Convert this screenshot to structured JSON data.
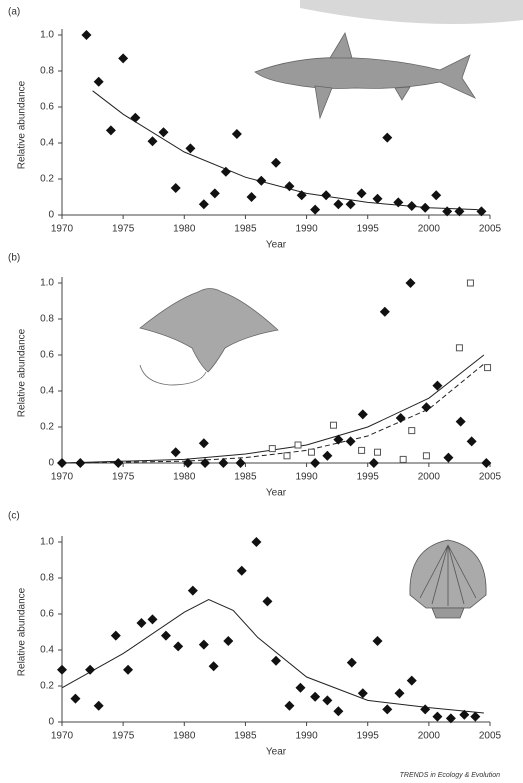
{
  "chart_data": [
    {
      "type": "scatter",
      "title": "(a)",
      "ylabel": "Relative abundance",
      "xlabel": "Year",
      "xlim": [
        1970,
        2005
      ],
      "xticks": [
        1970,
        1975,
        1980,
        1985,
        1990,
        1995,
        2000,
        2005
      ],
      "ylim": [
        0,
        1
      ],
      "yticks": [
        0,
        0.2,
        0.4,
        0.6,
        0.8,
        {
          "value": 1,
          "label": "1.0"
        }
      ],
      "series": [
        {
          "marker": "diamond",
          "color": "#111111",
          "x": [
            1972,
            1973,
            1975,
            1974,
            1976,
            1977.4,
            1978.3,
            1979.3,
            1980.5,
            1981.6,
            1982.5,
            1983.4,
            1984.3,
            1985.5,
            1986.3,
            1987.5,
            1988.6,
            1989.6,
            1990.7,
            1991.6,
            1992.6,
            1993.6,
            1994.5,
            1995.8,
            1996.6,
            1997.5,
            1998.6,
            1999.7,
            2000.6,
            2001.5,
            2002.5,
            2004.3
          ],
          "values": [
            1.0,
            0.74,
            0.87,
            0.47,
            0.54,
            0.41,
            0.46,
            0.15,
            0.37,
            0.06,
            0.12,
            0.24,
            0.45,
            0.1,
            0.19,
            0.29,
            0.16,
            0.11,
            0.03,
            0.11,
            0.06,
            0.06,
            0.12,
            0.09,
            0.43,
            0.07,
            0.05,
            0.04,
            0.11,
            0.02,
            0.02,
            0.02
          ]
        }
      ],
      "fits": [
        {
          "style": "solid",
          "color": "#222222",
          "x": [
            1972.5,
            1975,
            1980,
            1985,
            1990,
            1995,
            2000,
            2004
          ],
          "values": [
            0.69,
            0.56,
            0.35,
            0.21,
            0.12,
            0.07,
            0.04,
            0.03
          ]
        }
      ]
    },
    {
      "type": "scatter",
      "title": "(b)",
      "ylabel": "Relative abundance",
      "xlabel": "Year",
      "xlim": [
        1970,
        2005
      ],
      "xticks": [
        1970,
        1975,
        1980,
        1985,
        1990,
        1995,
        2000,
        2005
      ],
      "ylim": [
        0,
        1
      ],
      "yticks": [
        0,
        0.2,
        0.4,
        0.6,
        0.8,
        {
          "value": 1,
          "label": "1.0"
        }
      ],
      "series": [
        {
          "marker": "diamond",
          "color": "#111111",
          "x": [
            1970,
            1971.5,
            1974.6,
            1979.3,
            1980.3,
            1981.6,
            1981.7,
            1983.2,
            1984.6,
            1990.7,
            1991.7,
            1992.6,
            1993.6,
            1994.6,
            1995.5,
            1996.4,
            1997.7,
            1998.5,
            1999.8,
            2000.7,
            2001.6,
            2002.6,
            2003.5,
            2004.7
          ],
          "values": [
            0,
            0,
            0,
            0.06,
            0,
            0.11,
            0,
            0,
            0,
            0,
            0.04,
            0.13,
            0.12,
            0.27,
            0,
            0.84,
            0.25,
            1.0,
            0.31,
            0.43,
            0.03,
            0.23,
            0.12,
            0
          ]
        },
        {
          "marker": "square",
          "color": "#555555",
          "x": [
            1987.2,
            1988.4,
            1989.3,
            1990.4,
            1992.2,
            1994.5,
            1995.8,
            1997.9,
            1998.6,
            1999.8,
            2002.5,
            2003.4,
            2004.8
          ],
          "values": [
            0.08,
            0.04,
            0.1,
            0.06,
            0.21,
            0.07,
            0.06,
            0.02,
            0.18,
            0.04,
            0.64,
            1.0,
            0.53
          ]
        }
      ],
      "fits": [
        {
          "style": "solid",
          "color": "#222222",
          "x": [
            1970,
            1980,
            1985,
            1990,
            1995,
            2000,
            2004.5
          ],
          "values": [
            0,
            0.02,
            0.05,
            0.1,
            0.2,
            0.36,
            0.6
          ]
        },
        {
          "style": "dashed",
          "color": "#222222",
          "x": [
            1970,
            1980,
            1985,
            1990,
            1995,
            2000,
            2004.5
          ],
          "values": [
            0,
            0.01,
            0.03,
            0.07,
            0.15,
            0.3,
            0.55
          ]
        }
      ]
    },
    {
      "type": "scatter",
      "title": "(c)",
      "ylabel": "Relative abundance",
      "xlabel": "Year",
      "xlim": [
        1970,
        2005
      ],
      "xticks": [
        1970,
        1975,
        1980,
        1985,
        1990,
        1995,
        2000,
        2005
      ],
      "ylim": [
        0,
        1
      ],
      "yticks": [
        0,
        0.2,
        0.4,
        0.6,
        0.8,
        {
          "value": 1,
          "label": "1.0"
        }
      ],
      "series": [
        {
          "marker": "diamond",
          "color": "#111111",
          "x": [
            1970,
            1971.1,
            1972.3,
            1973,
            1974.4,
            1975.4,
            1976.5,
            1977.4,
            1978.5,
            1979.5,
            1980.7,
            1981.6,
            1982.4,
            1983.6,
            1984.7,
            1985.9,
            1986.8,
            1987.5,
            1988.6,
            1989.5,
            1990.7,
            1991.7,
            1992.6,
            1993.7,
            1994.6,
            1995.8,
            1996.6,
            1997.6,
            1998.6,
            1999.7,
            2000.7,
            2001.8,
            2002.9,
            2003.8
          ],
          "values": [
            0.29,
            0.13,
            0.29,
            0.09,
            0.48,
            0.29,
            0.55,
            0.57,
            0.48,
            0.42,
            0.73,
            0.43,
            0.31,
            0.45,
            0.84,
            1.0,
            0.67,
            0.34,
            0.09,
            0.19,
            0.14,
            0.12,
            0.06,
            0.33,
            0.16,
            0.45,
            0.07,
            0.16,
            0.23,
            0.07,
            0.03,
            0.02,
            0.04,
            0.03
          ]
        }
      ],
      "fits": [
        {
          "style": "solid",
          "color": "#222222",
          "x": [
            1970,
            1975,
            1980,
            1982,
            1984,
            1986,
            1990,
            1995,
            2000,
            2004.5
          ],
          "values": [
            0.19,
            0.38,
            0.61,
            0.68,
            0.62,
            0.47,
            0.25,
            0.12,
            0.08,
            0.05
          ]
        }
      ]
    }
  ],
  "footer": "TRENDS in Ecology & Evolution"
}
